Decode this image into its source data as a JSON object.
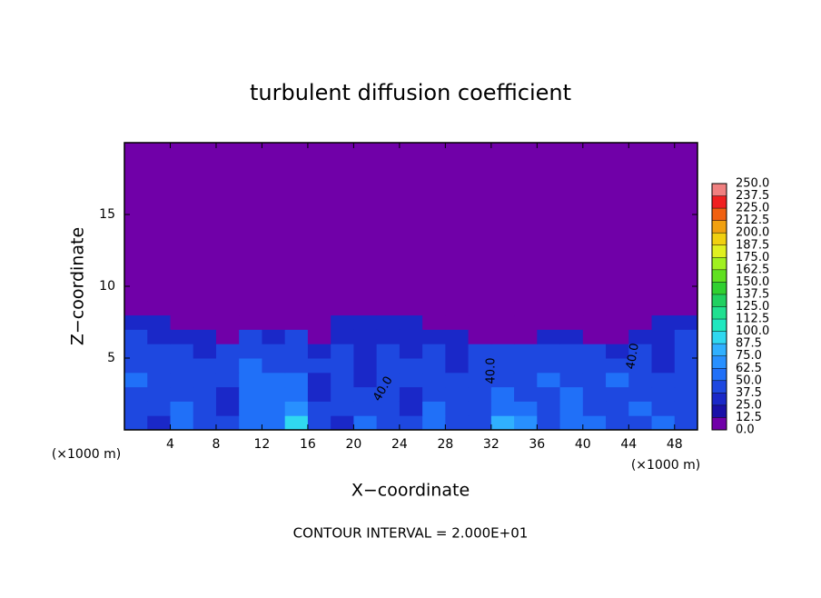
{
  "chart_data": {
    "type": "heatmap",
    "title": "turbulent diffusion coefficient",
    "xlabel": "X−coordinate",
    "ylabel": "Z−coordinate",
    "y_unit_label": "(×1000 m)",
    "x_unit_label": "(×1000 m)",
    "footer": "CONTOUR INTERVAL = 2.000E+01",
    "annotations": [
      "40.0",
      "40.0",
      "40.0"
    ],
    "xlim": [
      0,
      50
    ],
    "ylim": [
      0,
      20
    ],
    "xticks": [
      4,
      8,
      12,
      16,
      20,
      24,
      28,
      32,
      36,
      40,
      44,
      48
    ],
    "yticks": [
      5,
      10,
      15
    ],
    "x_bins": [
      0,
      2,
      4,
      6,
      8,
      10,
      12,
      14,
      16,
      18,
      20,
      22,
      24,
      26,
      28,
      30,
      32,
      34,
      36,
      38,
      40,
      42,
      44,
      46,
      48,
      50
    ],
    "z_bins": [
      0,
      1,
      2,
      3,
      4,
      5,
      6,
      7,
      8,
      9,
      20
    ],
    "values": [
      [
        40,
        35,
        55,
        45,
        40,
        50,
        60,
        95,
        45,
        35,
        50,
        45,
        40,
        55,
        45,
        40,
        85,
        70,
        45,
        55,
        50,
        40,
        45,
        50,
        40
      ],
      [
        45,
        40,
        50,
        40,
        35,
        55,
        60,
        70,
        40,
        40,
        45,
        40,
        35,
        50,
        40,
        45,
        60,
        50,
        40,
        55,
        45,
        40,
        50,
        45,
        40
      ],
      [
        40,
        45,
        45,
        40,
        35,
        60,
        55,
        60,
        35,
        40,
        40,
        40,
        35,
        45,
        45,
        40,
        50,
        45,
        45,
        50,
        40,
        45,
        45,
        40,
        45
      ],
      [
        50,
        40,
        40,
        45,
        40,
        55,
        50,
        50,
        35,
        40,
        35,
        40,
        40,
        45,
        40,
        40,
        45,
        45,
        50,
        45,
        40,
        50,
        40,
        40,
        40
      ],
      [
        45,
        40,
        40,
        40,
        40,
        50,
        45,
        45,
        40,
        40,
        35,
        40,
        40,
        40,
        35,
        40,
        40,
        40,
        45,
        40,
        40,
        45,
        40,
        35,
        40
      ],
      [
        40,
        40,
        40,
        35,
        40,
        45,
        40,
        40,
        35,
        40,
        35,
        40,
        35,
        40,
        35,
        40,
        40,
        40,
        40,
        40,
        40,
        30,
        40,
        35,
        40
      ],
      [
        40,
        35,
        30,
        30,
        5,
        40,
        35,
        40,
        5,
        35,
        35,
        35,
        35,
        35,
        30,
        5,
        5,
        5,
        30,
        30,
        5,
        5,
        35,
        35,
        40
      ],
      [
        35,
        30,
        5,
        5,
        5,
        5,
        5,
        5,
        5,
        30,
        30,
        30,
        30,
        5,
        5,
        5,
        5,
        5,
        5,
        5,
        5,
        5,
        5,
        30,
        30
      ],
      [
        5,
        5,
        5,
        5,
        5,
        5,
        5,
        5,
        5,
        5,
        5,
        5,
        5,
        5,
        5,
        5,
        5,
        5,
        5,
        5,
        5,
        5,
        5,
        5,
        5
      ],
      [
        5,
        5,
        5,
        5,
        5,
        5,
        5,
        5,
        5,
        5,
        5,
        5,
        5,
        5,
        5,
        5,
        5,
        5,
        5,
        5,
        5,
        5,
        5,
        5,
        5
      ]
    ],
    "colorbar": {
      "ticks": [
        {
          "value": 0,
          "label": "0.0"
        },
        12.5,
        {
          "value": 25,
          "label": "25.0"
        },
        37.5,
        {
          "value": 50,
          "label": "50.0"
        },
        62.5,
        {
          "value": 75,
          "label": "75.0"
        },
        87.5,
        {
          "value": 100,
          "label": "100.0"
        },
        112.5,
        {
          "value": 125,
          "label": "125.0"
        },
        137.5,
        {
          "value": 150,
          "label": "150.0"
        },
        162.5,
        {
          "value": 175,
          "label": "175.0"
        },
        187.5,
        {
          "value": 200,
          "label": "200.0"
        },
        212.5,
        {
          "value": 225,
          "label": "225.0"
        },
        237.5,
        {
          "value": 250,
          "label": "250.0"
        }
      ],
      "colors": [
        "#7000a8",
        "#1a10a8",
        "#1a28c8",
        "#1e48e0",
        "#2070f8",
        "#2890ff",
        "#30b0ff",
        "#30d8f0",
        "#20e8c0",
        "#20e090",
        "#20d060",
        "#30d030",
        "#60e020",
        "#a0f020",
        "#e0f020",
        "#f0d010",
        "#f0a010",
        "#f06010",
        "#f02020",
        "#f08080"
      ]
    }
  }
}
